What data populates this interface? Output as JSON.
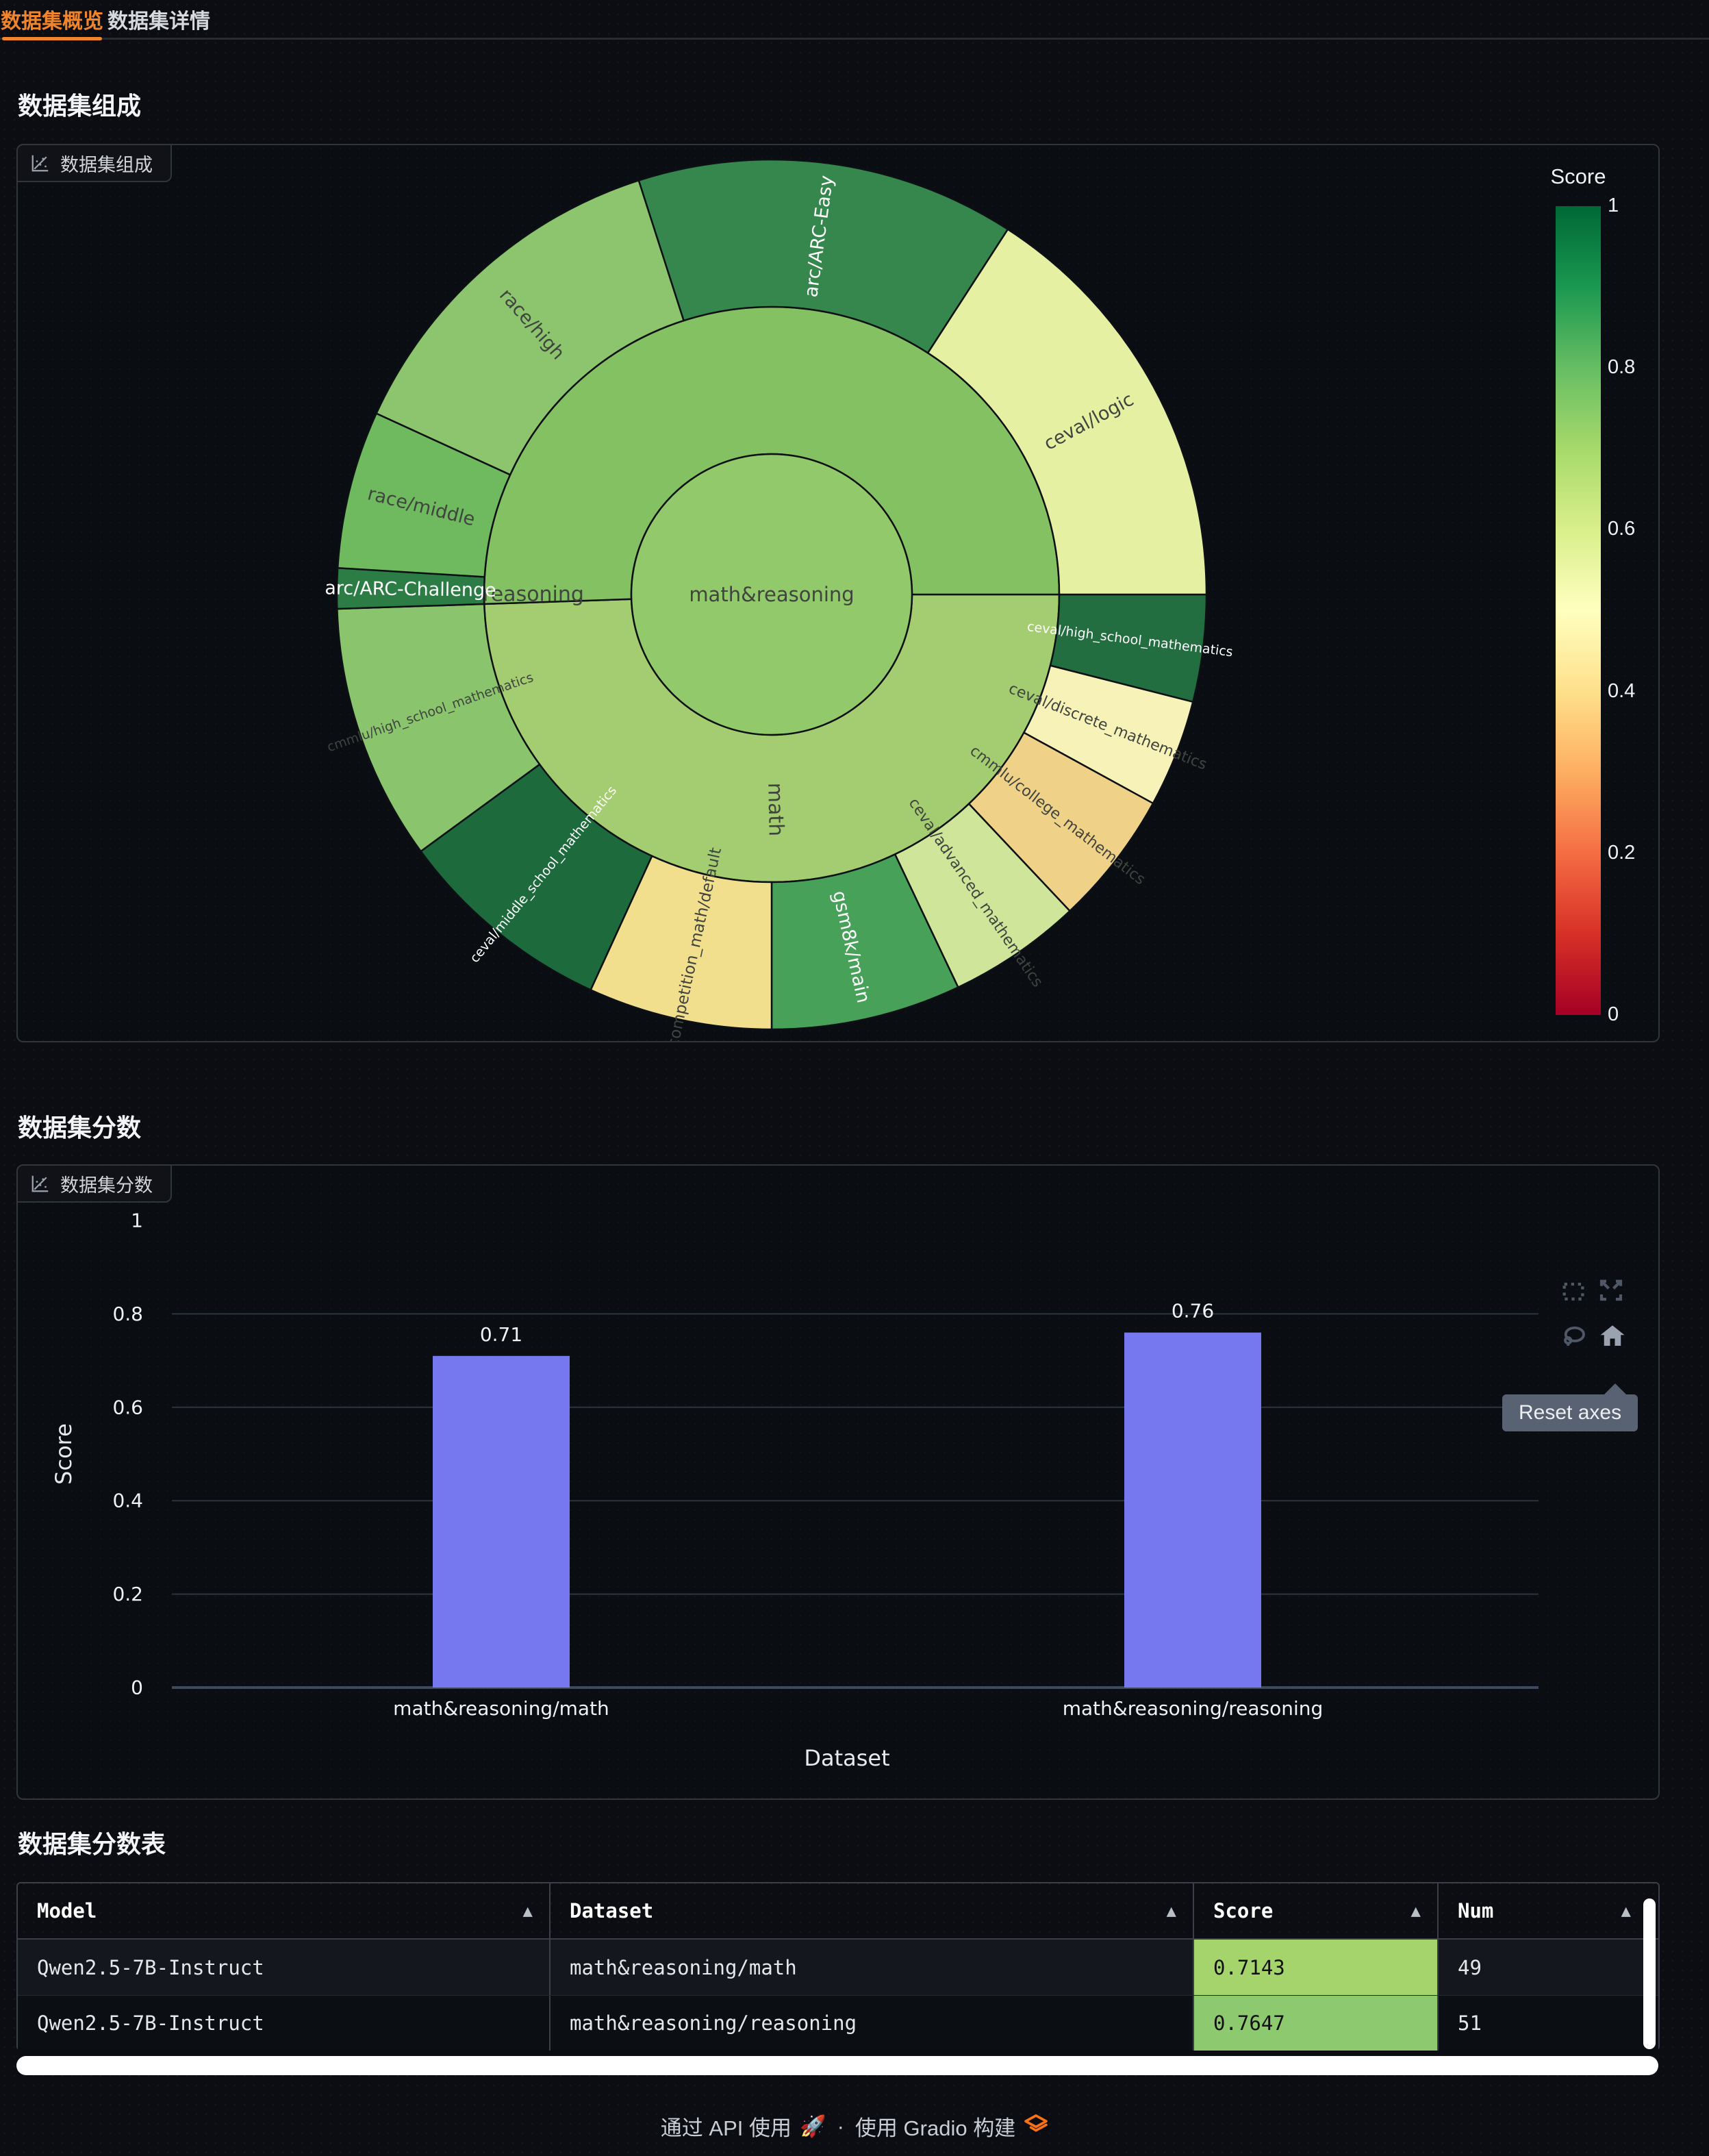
{
  "tabs": [
    {
      "label": "数据集概览",
      "active": true
    },
    {
      "label": "数据集详情",
      "active": false
    }
  ],
  "sections": {
    "composition_title": "数据集组成",
    "scores_title": "数据集分数",
    "table_title": "数据集分数表"
  },
  "plot_chips": {
    "composition": "数据集组成",
    "scores": "数据集分数"
  },
  "modebar": {
    "icons": [
      "box-select-icon",
      "autoscale-icon",
      "lasso-select-icon",
      "reset-axes-home-icon"
    ],
    "tooltip": "Reset axes"
  },
  "chart_data": [
    {
      "type": "sunburst",
      "title": "数据集组成",
      "root": {
        "label": "math&reasoning",
        "color": "#92c96b"
      },
      "branches": [
        {
          "label": "math",
          "color": "#a3cd70",
          "label_angle_deg": 89,
          "label_r": 314,
          "label_rot_deg": 89,
          "children": [
            {
              "label": "ceval/high_school_mathematics",
              "span_deg": 14.3,
              "color": "#226e40",
              "text": "light"
            },
            {
              "label": "ceval/discrete_mathematics",
              "span_deg": 14.4,
              "color": "#f7f3b8",
              "text": "dark"
            },
            {
              "label": "cmmlu/college_mathematics",
              "span_deg": 18.0,
              "color": "#efd187",
              "text": "dark"
            },
            {
              "label": "ceval/advanced_mathematics",
              "span_deg": 17.9,
              "color": "#cee59a",
              "text": "dark"
            },
            {
              "label": "gsm8k/main",
              "span_deg": 25.4,
              "color": "#47a159",
              "text": "light"
            },
            {
              "label": "competition_math/default",
              "span_deg": 24.6,
              "color": "#f2df8d",
              "text": "dark"
            },
            {
              "label": "ceval/middle_school_mathematics",
              "span_deg": 29.2,
              "color": "#1d6b3c",
              "text": "light"
            },
            {
              "label": "cmmlu/high_school_mathematics",
              "span_deg": 34.3,
              "color": "#8ac56d",
              "text": "dark"
            }
          ]
        },
        {
          "label": "reasoning",
          "color": "#83c163",
          "label_angle_deg": 180,
          "label_r": 348,
          "label_rot_deg": 0,
          "children": [
            {
              "label": "arc/ARC-Challenge",
              "span_deg": 5.4,
              "color": "#2c7d45",
              "text": "light"
            },
            {
              "label": "race/middle",
              "span_deg": 21.1,
              "color": "#6fb95f",
              "text": "dark"
            },
            {
              "label": "race/high",
              "span_deg": 47.6,
              "color": "#8cc56d",
              "text": "dark"
            },
            {
              "label": "arc/ARC-Easy",
              "span_deg": 50.7,
              "color": "#35874d",
              "text": "light"
            },
            {
              "label": "ceval/logic",
              "span_deg": 57.1,
              "color": "#e6f0a3",
              "text": "dark"
            }
          ]
        }
      ],
      "colorbar": {
        "title": "Score",
        "tick_labels": [
          "1",
          "0.8",
          "0.6",
          "0.4",
          "0.2",
          "0"
        ],
        "tick_values": [
          1,
          0.8,
          0.6,
          0.4,
          0.2,
          0
        ],
        "gradient_top_to_bottom": [
          "#006837",
          "#1a9850",
          "#66bd63",
          "#a6d96a",
          "#d9ef8b",
          "#ffffbf",
          "#fee08b",
          "#fdae61",
          "#f46d43",
          "#d73027",
          "#a50026"
        ]
      }
    },
    {
      "type": "bar",
      "title": "数据集分数",
      "categories": [
        "math&reasoning/math",
        "math&reasoning/reasoning"
      ],
      "values": [
        0.71,
        0.76
      ],
      "value_labels": [
        "0.71",
        "0.76"
      ],
      "bar_color": "#7678f0",
      "xlabel": "Dataset",
      "ylabel": "Score",
      "ylim": [
        0,
        1
      ],
      "yticks": [
        0,
        0.2,
        0.4,
        0.6,
        0.8,
        1
      ],
      "ytick_labels": [
        "0",
        "0.2",
        "0.4",
        "0.6",
        "0.8",
        "1"
      ],
      "grid": true,
      "legend": false
    }
  ],
  "table": {
    "sort_glyph": "▲",
    "columns": [
      "Model",
      "Dataset",
      "Score",
      "Num"
    ],
    "rows": [
      {
        "model": "Qwen2.5-7B-Instruct",
        "dataset": "math&reasoning/math",
        "score": "0.7143",
        "score_bg": "#a6d46c",
        "num": "49"
      },
      {
        "model": "Qwen2.5-7B-Instruct",
        "dataset": "math&reasoning/reasoning",
        "score": "0.7647",
        "score_bg": "#8cc96f",
        "num": "51"
      }
    ]
  },
  "footer": {
    "api_link": "通过 API 使用",
    "separator": "·",
    "built_with": "使用 Gradio 构建",
    "rocket_emoji": "🚀",
    "brand_color": "#f97316"
  }
}
